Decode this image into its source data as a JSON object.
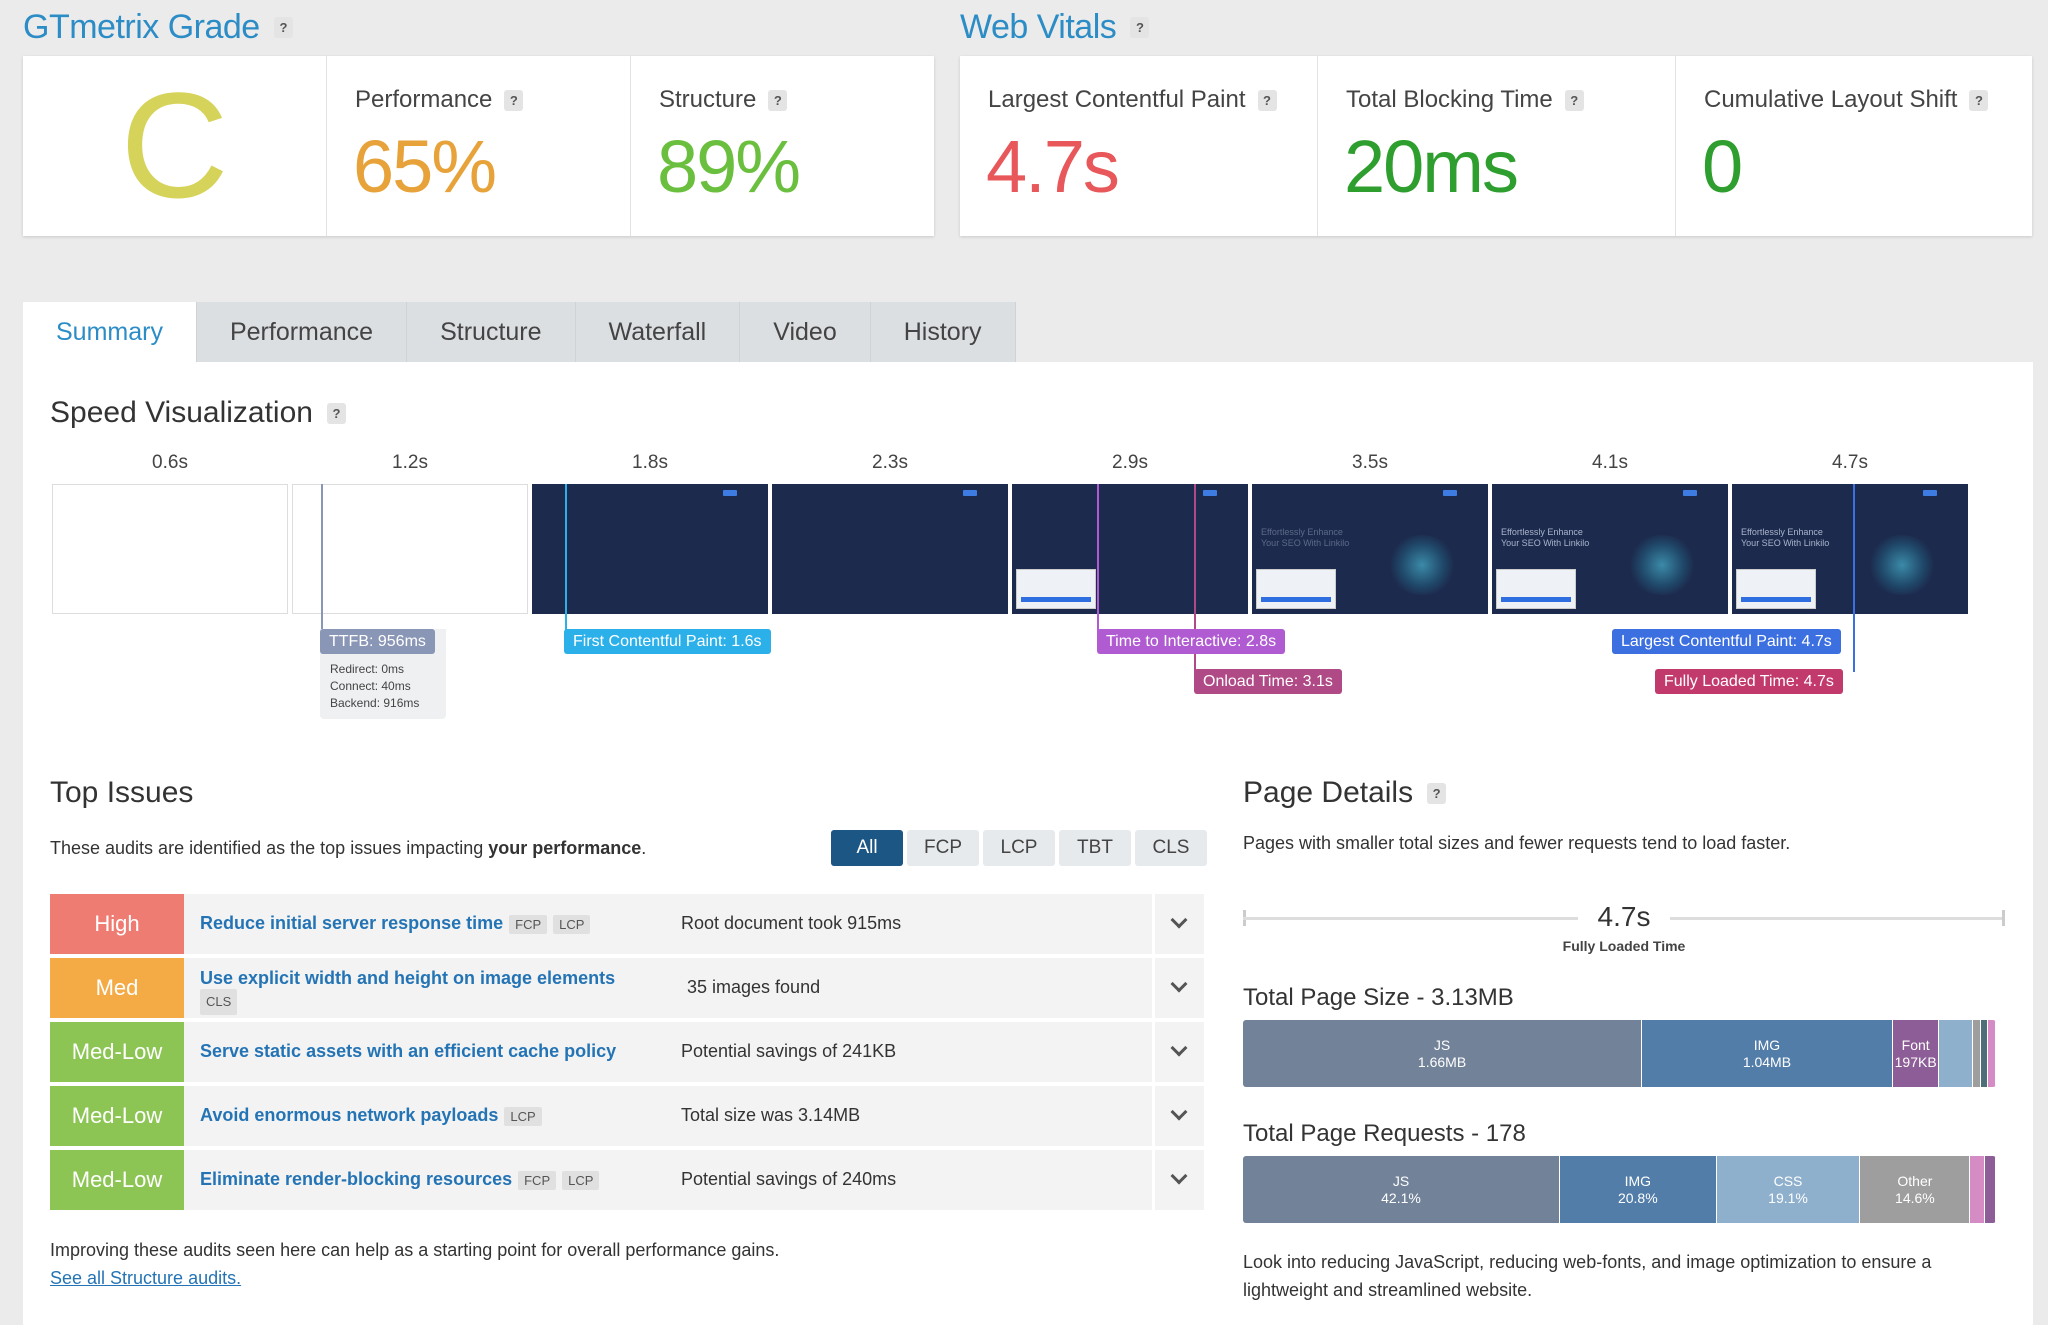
{
  "grade_section": {
    "title": "GTmetrix Grade",
    "help": "?",
    "grade": "C",
    "grade_color": "#d6d35a",
    "performance": {
      "label": "Performance",
      "value": "65%",
      "color": "#e7a23a"
    },
    "structure": {
      "label": "Structure",
      "value": "89%",
      "color": "#6bbf3e"
    }
  },
  "vitals_section": {
    "title": "Web Vitals",
    "help": "?",
    "lcp": {
      "label": "Largest Contentful Paint",
      "value": "4.7s",
      "color": "#e8575a"
    },
    "tbt": {
      "label": "Total Blocking Time",
      "value": "20ms",
      "color": "#2e9e2e"
    },
    "cls": {
      "label": "Cumulative Layout Shift",
      "value": "0",
      "color": "#2e9e2e"
    }
  },
  "tabs": [
    "Summary",
    "Performance",
    "Structure",
    "Waterfall",
    "Video",
    "History"
  ],
  "speed": {
    "title": "Speed Visualization",
    "help": "?",
    "times": [
      "0.6s",
      "1.2s",
      "1.8s",
      "2.3s",
      "2.9s",
      "3.5s",
      "4.1s",
      "4.7s"
    ],
    "frame_hero": "Effortlessly Enhance Your SEO With Linkilo",
    "markers": {
      "ttfb": "TTFB: 956ms",
      "ttfb_redirect": "Redirect: 0ms",
      "ttfb_connect": "Connect: 40ms",
      "ttfb_backend": "Backend: 916ms",
      "fcp": "First Contentful Paint: 1.6s",
      "tti": "Time to Interactive: 2.8s",
      "onload": "Onload Time: 3.1s",
      "lcp": "Largest Contentful Paint: 4.7s",
      "fully": "Fully Loaded Time: 4.7s"
    },
    "colors": {
      "ttfb": "#8a96b5",
      "fcp": "#2bb0e9",
      "tti": "#b05bd1",
      "onload": "#b04a86",
      "lcp": "#3c6fe0",
      "fully": "#c23a6c"
    }
  },
  "issues": {
    "title": "Top Issues",
    "desc_prefix": "These audits are identified as the top issues impacting ",
    "desc_bold": "your performance",
    "desc_suffix": ".",
    "filters": [
      "All",
      "FCP",
      "LCP",
      "TBT",
      "CLS"
    ],
    "rows": [
      {
        "severity": "High",
        "color": "#ef7c72",
        "title": "Reduce initial server response time",
        "chips": [
          "FCP",
          "LCP"
        ],
        "detail": "Root document took 915ms"
      },
      {
        "severity": "Med",
        "color": "#f5ab45",
        "title": "Use explicit width and height on image elements",
        "chips": [
          "CLS"
        ],
        "detail": "35 images found"
      },
      {
        "severity": "Med-Low",
        "color": "#8dc554",
        "title": "Serve static assets with an efficient cache policy",
        "chips": [],
        "detail": "Potential savings of 241KB"
      },
      {
        "severity": "Med-Low",
        "color": "#8dc554",
        "title": "Avoid enormous network payloads",
        "chips": [
          "LCP"
        ],
        "detail": "Total size was 3.14MB"
      },
      {
        "severity": "Med-Low",
        "color": "#8dc554",
        "title": "Eliminate render-blocking resources",
        "chips": [
          "FCP",
          "LCP"
        ],
        "detail": "Potential savings of 240ms"
      }
    ],
    "footer": "Improving these audits seen here can help as a starting point for overall performance gains.",
    "link": "See all Structure audits."
  },
  "details": {
    "title": "Page Details",
    "help": "?",
    "desc": "Pages with smaller total sizes and fewer requests tend to load faster.",
    "fully_loaded_value": "4.7s",
    "fully_loaded_label": "Fully Loaded Time",
    "size_title": "Total Page Size - 3.13MB",
    "size_segments": [
      {
        "name": "JS",
        "value": "1.66MB",
        "share": 0.53,
        "color": "#728299"
      },
      {
        "name": "IMG",
        "value": "1.04MB",
        "share": 0.333,
        "color": "#527da8"
      },
      {
        "name": "Font",
        "value": "197KB",
        "share": 0.062,
        "color": "#8c5d96"
      },
      {
        "name": "",
        "value": "",
        "share": 0.045,
        "color": "#8fb0cd"
      },
      {
        "name": "",
        "value": "",
        "share": 0.01,
        "color": "#9e9e9e"
      },
      {
        "name": "",
        "value": "",
        "share": 0.009,
        "color": "#4f6f78"
      },
      {
        "name": "",
        "value": "",
        "share": 0.011,
        "color": "#d58cc4"
      }
    ],
    "requests_title": "Total Page Requests - 178",
    "request_segments": [
      {
        "name": "JS",
        "value": "42.1%",
        "share": 0.421,
        "color": "#728299"
      },
      {
        "name": "IMG",
        "value": "20.8%",
        "share": 0.208,
        "color": "#527da8"
      },
      {
        "name": "CSS",
        "value": "19.1%",
        "share": 0.191,
        "color": "#8fb0cd"
      },
      {
        "name": "Other",
        "value": "14.6%",
        "share": 0.146,
        "color": "#9e9e9e"
      },
      {
        "name": "",
        "value": "",
        "share": 0.02,
        "color": "#d58cc4"
      },
      {
        "name": "",
        "value": "",
        "share": 0.014,
        "color": "#8c5d96"
      }
    ],
    "advice": "Look into reducing JavaScript, reducing web-fonts, and image optimization to ensure a lightweight and streamlined website."
  }
}
